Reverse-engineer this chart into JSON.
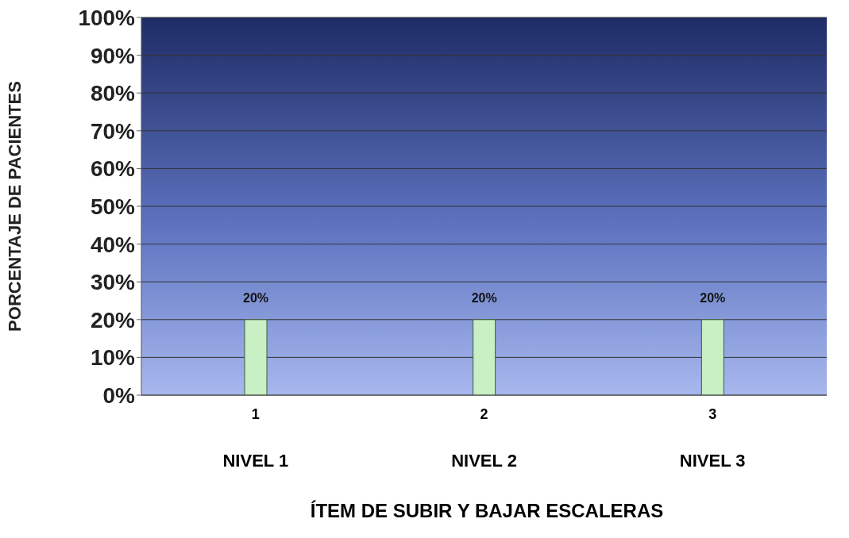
{
  "chart_data": {
    "type": "bar",
    "xlabel": "ÍTEM DE SUBIR Y BAJAR ESCALERAS",
    "ylabel": "PORCENTAJE DE PACIENTES",
    "categories": [
      "1",
      "2",
      "3"
    ],
    "values": [
      20,
      20,
      20
    ],
    "color": "#c8f0c4",
    "value_labels": [
      "20%",
      "20%",
      "20%"
    ],
    "ylim": [
      0,
      100
    ],
    "yticks": [
      {
        "value": 0,
        "label": "0%"
      },
      {
        "value": 10,
        "label": "10%"
      },
      {
        "value": 20,
        "label": "20%"
      },
      {
        "value": 30,
        "label": "30%"
      },
      {
        "value": 40,
        "label": "40%"
      },
      {
        "value": 50,
        "label": "50%"
      },
      {
        "value": 60,
        "label": "60%"
      },
      {
        "value": 70,
        "label": "70%"
      },
      {
        "value": 80,
        "label": "80%"
      },
      {
        "value": 90,
        "label": "90%"
      },
      {
        "value": 100,
        "label": "100%"
      }
    ],
    "grid": "y",
    "annotations": [
      "NIVEL 1",
      "NIVEL 2",
      "NIVEL 3"
    ]
  }
}
